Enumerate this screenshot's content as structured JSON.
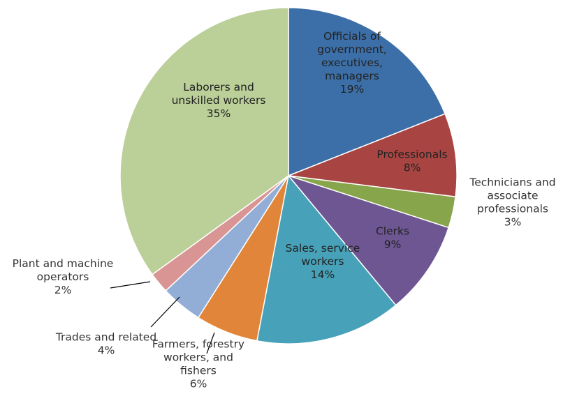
{
  "chart_data": {
    "type": "pie",
    "title": "",
    "start_angle_deg": 0,
    "direction": "clockwise",
    "slices": [
      {
        "label": "Officials of government, executives, managers",
        "label_lines": [
          "Officials of",
          "government,",
          "executives,",
          "managers"
        ],
        "value": 19,
        "value_label": "19%",
        "color": "#3C6FA8"
      },
      {
        "label": "Professionals",
        "label_lines": [
          "Professionals"
        ],
        "value": 8,
        "value_label": "8%",
        "color": "#A84542"
      },
      {
        "label": "Technicians and associate professionals",
        "label_lines": [
          "Technicians and",
          "associate",
          "professionals"
        ],
        "value": 3,
        "value_label": "3%",
        "color": "#87A54B"
      },
      {
        "label": "Clerks",
        "label_lines": [
          "Clerks"
        ],
        "value": 9,
        "value_label": "9%",
        "color": "#6E5692"
      },
      {
        "label": "Sales, service workers",
        "label_lines": [
          "Sales, service",
          "workers"
        ],
        "value": 14,
        "value_label": "14%",
        "color": "#47A1B8"
      },
      {
        "label": "Farmers, forestry workers, and fishers",
        "label_lines": [
          "Farmers, forestry",
          "workers,  and",
          "fishers"
        ],
        "value": 6,
        "value_label": "6%",
        "color": "#E08539"
      },
      {
        "label": "Trades and related",
        "label_lines": [
          "Trades and related"
        ],
        "value": 4,
        "value_label": "4%",
        "color": "#93AED6"
      },
      {
        "label": "Plant and machine operators",
        "label_lines": [
          "Plant and machine",
          "operators"
        ],
        "value": 2,
        "value_label": "2%",
        "color": "#D99594"
      },
      {
        "label": "Laborers and unskilled workers",
        "label_lines": [
          "Laborers and",
          "unskilled workers"
        ],
        "value": 35,
        "value_label": "35%",
        "color": "#BBCF98"
      }
    ]
  }
}
